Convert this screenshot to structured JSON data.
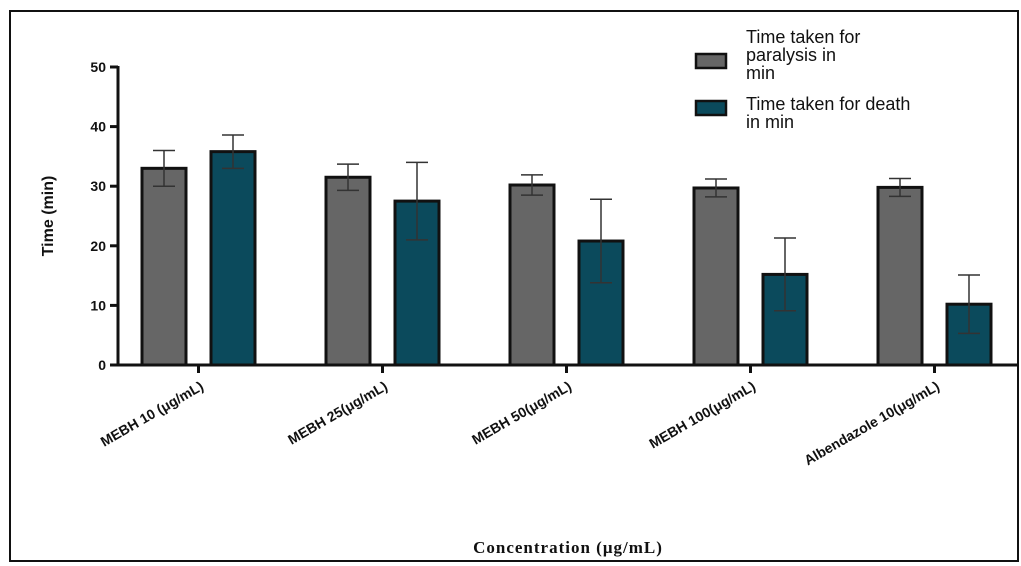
{
  "chart_data": {
    "type": "bar",
    "title": "",
    "xlabel": "Concentration (μg/mL)",
    "ylabel": "Time (min)",
    "ylim": [
      0,
      50
    ],
    "yticks": [
      0,
      10,
      20,
      30,
      40,
      50
    ],
    "categories": [
      "MEBH 10 (μg/mL)",
      "MEBH 25(μg/mL)",
      "MEBH 50(μg/mL)",
      "MEBH 100(μg/mL)",
      "Albendazole 10(μg/mL)"
    ],
    "series": [
      {
        "name": "Time taken for paralysis in min",
        "name_lines": [
          "Time taken for",
          "paralysis in",
          "min"
        ],
        "color": "#666666",
        "values": [
          33,
          31.5,
          30.2,
          29.7,
          29.8
        ],
        "errors": [
          3,
          2.2,
          1.7,
          1.5,
          1.5
        ]
      },
      {
        "name": "Time taken for death in min",
        "name_lines": [
          "Time taken for death",
          "in min"
        ],
        "color": "#0b4a5c",
        "values": [
          35.8,
          27.5,
          20.8,
          15.2,
          10.2
        ],
        "errors": [
          2.8,
          6.5,
          7,
          6.1,
          4.9
        ]
      }
    ],
    "legend_position": "top-right",
    "grid": false
  }
}
